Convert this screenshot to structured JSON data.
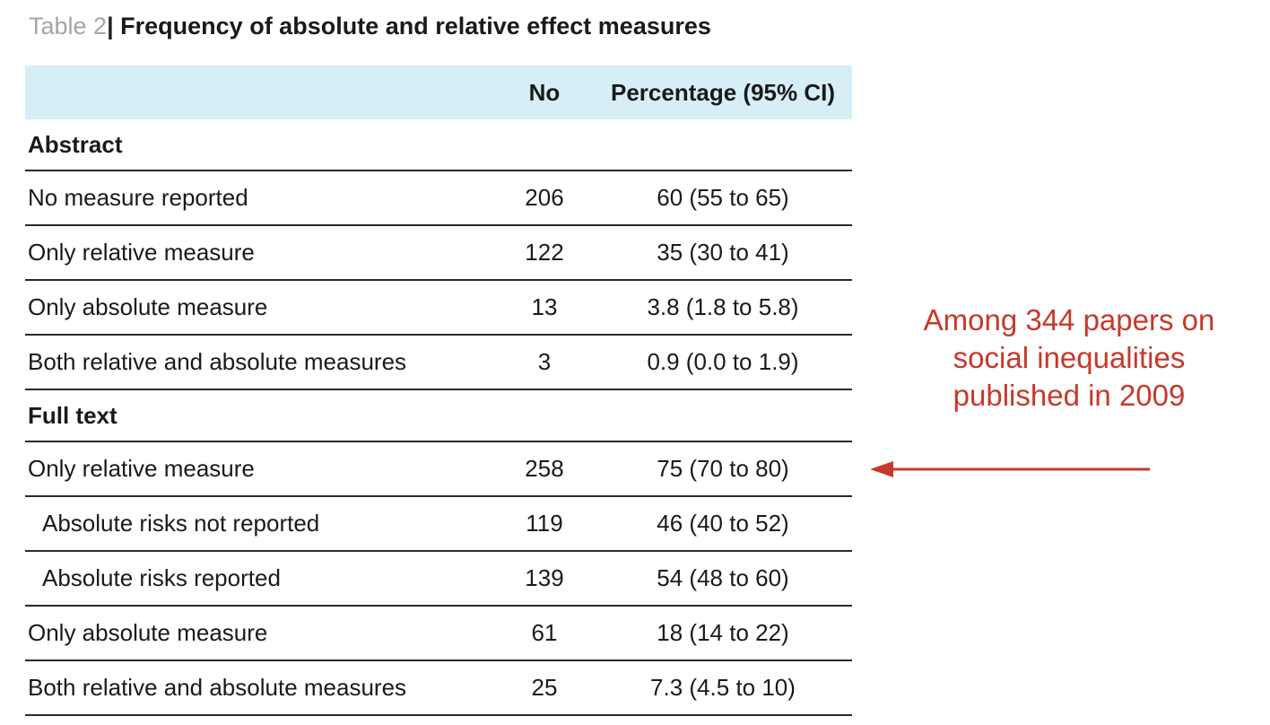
{
  "title": {
    "label": "Table 2",
    "separator": "|",
    "text": "Frequency of absolute and relative effect measures"
  },
  "table": {
    "headers": [
      "",
      "No",
      "Percentage (95% CI)"
    ],
    "sections": [
      {
        "name": "Abstract",
        "rows": [
          {
            "label": "No measure reported",
            "no": "206",
            "pct": "60 (55 to 65)",
            "indent": false
          },
          {
            "label": "Only relative measure",
            "no": "122",
            "pct": "35 (30 to 41)",
            "indent": false
          },
          {
            "label": "Only absolute measure",
            "no": "13",
            "pct": "3.8 (1.8 to 5.8)",
            "indent": false
          },
          {
            "label": "Both relative and absolute measures",
            "no": "3",
            "pct": "0.9 (0.0 to 1.9)",
            "indent": false
          }
        ]
      },
      {
        "name": "Full text",
        "rows": [
          {
            "label": "Only relative measure",
            "no": "258",
            "pct": "75 (70 to 80)",
            "indent": false
          },
          {
            "label": "Absolute risks not reported",
            "no": "119",
            "pct": "46 (40 to 52)",
            "indent": true
          },
          {
            "label": "Absolute risks reported",
            "no": "139",
            "pct": "54 (48 to 60)",
            "indent": true
          },
          {
            "label": "Only absolute measure",
            "no": "61",
            "pct": "18 (14 to 22)",
            "indent": false
          },
          {
            "label": "Both relative and absolute measures",
            "no": "25",
            "pct": "7.3 (4.5 to 10)",
            "indent": false
          }
        ]
      }
    ]
  },
  "annotation": {
    "lines": [
      "Among 344 papers on",
      "social inequalities",
      "published in 2009"
    ],
    "color": "#c8382a"
  },
  "colors": {
    "header_bg": "#d6eff6",
    "rule": "#2a2a2a",
    "title_label": "#a4a4a4"
  }
}
